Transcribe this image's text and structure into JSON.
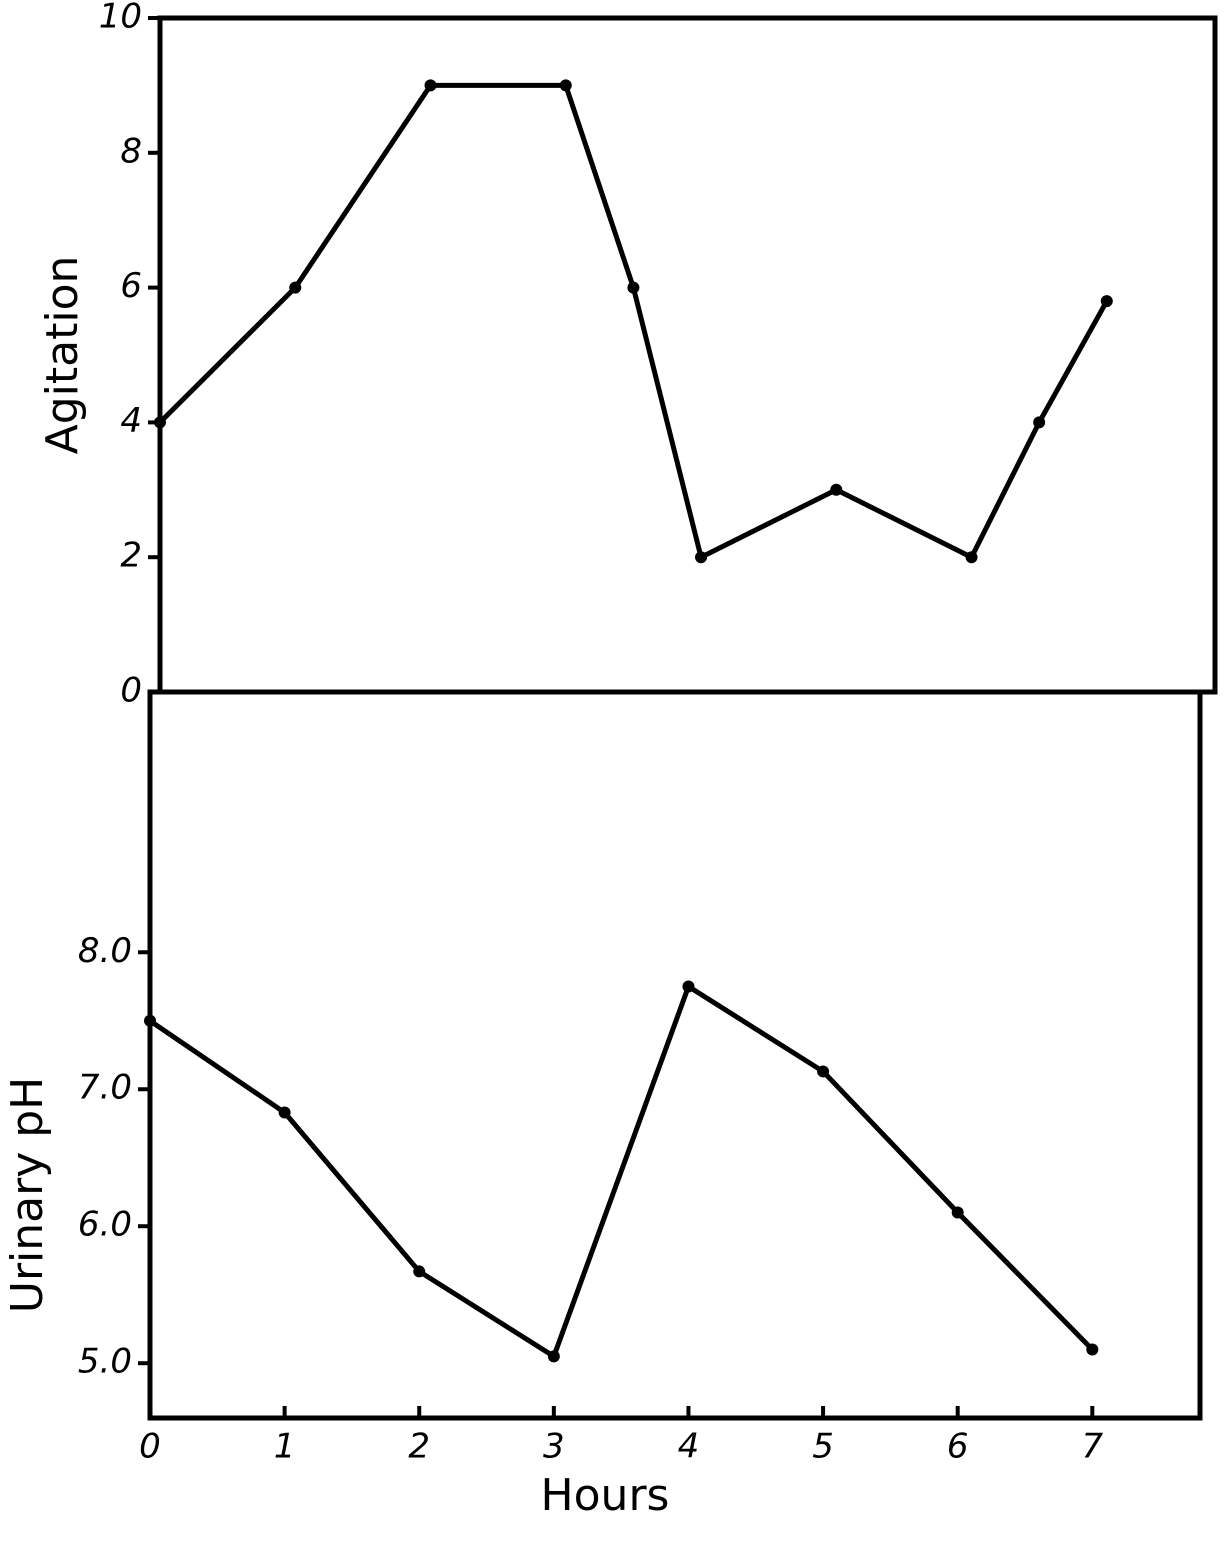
{
  "chart_data": [
    {
      "type": "line",
      "ylabel": "Agitation",
      "x": [
        0,
        1,
        2,
        3,
        3.5,
        4,
        5,
        6,
        6.5,
        7
      ],
      "series": [
        {
          "color": "#000000",
          "values": [
            4,
            6,
            9,
            9,
            6,
            2,
            3,
            2,
            4,
            5.8
          ]
        }
      ],
      "xlim": [
        0,
        7.8
      ],
      "ylim": [
        0,
        10
      ],
      "yticks": [
        0,
        2,
        4,
        6,
        8,
        10
      ]
    },
    {
      "type": "line",
      "ylabel": "Urinary pH",
      "xlabel": "Hours",
      "x": [
        0,
        1,
        2,
        3,
        4,
        5,
        6,
        7
      ],
      "series": [
        {
          "color": "#000000",
          "values": [
            7.5,
            6.83,
            5.67,
            5.05,
            7.75,
            7.13,
            6.1,
            5.1
          ]
        }
      ],
      "xlim": [
        0,
        7.8
      ],
      "ylim": [
        4.6,
        9.9
      ],
      "xticks": [
        0,
        1,
        2,
        3,
        4,
        5,
        6,
        7
      ],
      "yticks": [
        {
          "value": 5,
          "label": "5.0"
        },
        {
          "value": 6,
          "label": "6.0"
        },
        {
          "value": 7,
          "label": "7.0"
        },
        {
          "value": 8,
          "label": "8.0"
        }
      ]
    }
  ]
}
